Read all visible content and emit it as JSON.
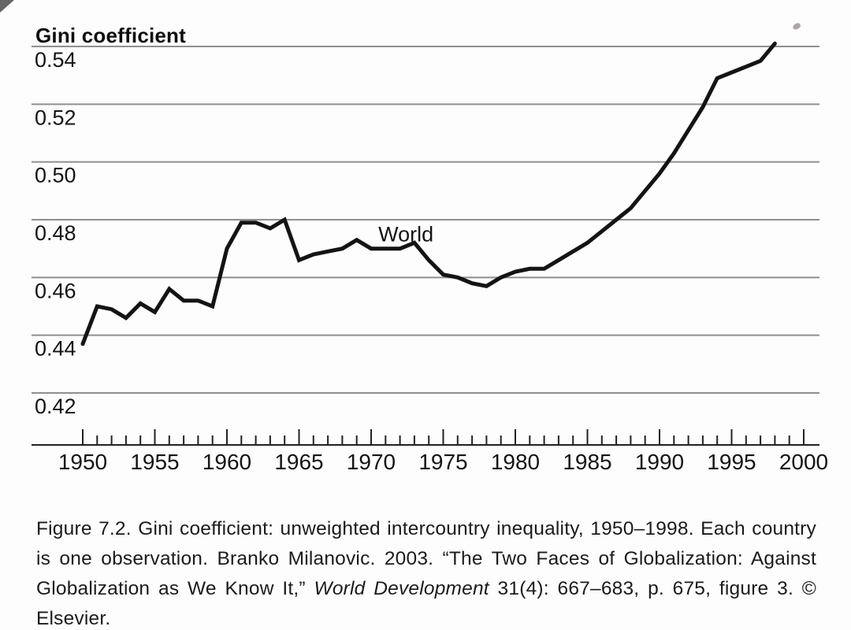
{
  "chart_data": {
    "type": "line",
    "title": "Gini coefficient",
    "xlabel": "",
    "ylabel": "Gini coefficient",
    "x_range": [
      1950,
      2000
    ],
    "ylim": [
      0.42,
      0.54
    ],
    "grid": "horizontal-only",
    "legend_position": "inline-annotation",
    "line_color": "#141414",
    "grid_color": "#8f8f8f",
    "yticks": [
      "0.42",
      "0.44",
      "0.46",
      "0.48",
      "0.50",
      "0.52",
      "0.54"
    ],
    "xticks": [
      "1950",
      "1955",
      "1960",
      "1965",
      "1970",
      "1975",
      "1980",
      "1985",
      "1990",
      "1995",
      "2000"
    ],
    "annotation": {
      "text": "World",
      "x": 1970.5,
      "y": 0.4725
    },
    "series": [
      {
        "name": "World",
        "x": [
          1950,
          1951,
          1952,
          1953,
          1954,
          1955,
          1956,
          1957,
          1958,
          1959,
          1960,
          1961,
          1962,
          1963,
          1964,
          1965,
          1966,
          1967,
          1968,
          1969,
          1970,
          1971,
          1972,
          1973,
          1974,
          1975,
          1976,
          1977,
          1978,
          1979,
          1980,
          1981,
          1982,
          1983,
          1984,
          1985,
          1986,
          1987,
          1988,
          1989,
          1990,
          1991,
          1992,
          1993,
          1994,
          1995,
          1996,
          1997,
          1998
        ],
        "values": [
          0.437,
          0.45,
          0.449,
          0.446,
          0.451,
          0.448,
          0.456,
          0.452,
          0.452,
          0.45,
          0.47,
          0.479,
          0.479,
          0.477,
          0.48,
          0.466,
          0.468,
          0.469,
          0.47,
          0.473,
          0.47,
          0.47,
          0.47,
          0.472,
          0.466,
          0.461,
          0.46,
          0.458,
          0.457,
          0.46,
          0.462,
          0.463,
          0.463,
          0.466,
          0.469,
          0.472,
          0.476,
          0.48,
          0.484,
          0.49,
          0.496,
          0.503,
          0.511,
          0.519,
          0.529,
          0.531,
          0.533,
          0.535,
          0.541
        ]
      }
    ]
  },
  "caption": {
    "part1": "Figure 7.2. Gini coefficient: unweighted intercountry inequality, 1950–1998. Each country is one observation. Branko Milanovic. 2003. “The Two Faces of Globalization: Against Globalization as We Know It,” ",
    "part2_italic": "World Development",
    "part3": " 31(4): 667–683, p. 675, figure 3. © Elsevier."
  }
}
